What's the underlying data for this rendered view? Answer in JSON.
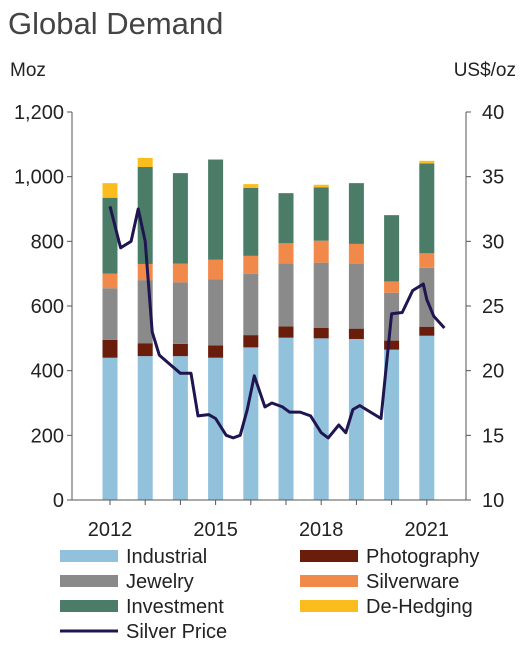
{
  "chart_data": {
    "type": "bar",
    "title": "Global Demand",
    "ylabel_left": "Moz",
    "ylabel_right": "US$/oz",
    "ylim_left": [
      0,
      1200
    ],
    "yticks_left": [
      "0",
      "200",
      "400",
      "600",
      "800",
      "1,000",
      "1,200"
    ],
    "ylim_right": [
      10,
      40
    ],
    "yticks_right": [
      "10",
      "15",
      "20",
      "25",
      "30",
      "35",
      "40"
    ],
    "x_tick_labels": [
      "2012",
      "2015",
      "2018",
      "2021"
    ],
    "categories": [
      "2012",
      "2013",
      "2014",
      "2015",
      "2016",
      "2017",
      "2018",
      "2019",
      "2020",
      "2021"
    ],
    "series": [
      {
        "name": "Industrial",
        "color": "#92c1dc",
        "values": [
          440,
          445,
          445,
          440,
          472,
          502,
          500,
          498,
          465,
          508
        ]
      },
      {
        "name": "Photography",
        "color": "#6b1d0c",
        "values": [
          55,
          40,
          38,
          38,
          38,
          35,
          32,
          32,
          28,
          28
        ]
      },
      {
        "name": "Jewelry",
        "color": "#8a8a8a",
        "values": [
          160,
          195,
          190,
          205,
          190,
          195,
          202,
          200,
          148,
          182
        ]
      },
      {
        "name": "Silverware",
        "color": "#f0894a",
        "values": [
          45,
          50,
          58,
          60,
          55,
          62,
          68,
          62,
          35,
          45
        ]
      },
      {
        "name": "Investment",
        "color": "#4a7c68",
        "values": [
          235,
          300,
          280,
          310,
          210,
          155,
          165,
          188,
          205,
          278
        ]
      },
      {
        "name": "De-Hedging",
        "color": "#fbbd1d",
        "values": [
          45,
          28,
          0,
          0,
          12,
          0,
          8,
          0,
          0,
          8
        ]
      }
    ],
    "line_series": {
      "name": "Silver Price",
      "color": "#1f1550",
      "axis": "right",
      "x": [
        2012.0,
        2012.3,
        2012.6,
        2012.8,
        2013.0,
        2013.2,
        2013.4,
        2013.7,
        2014.0,
        2014.3,
        2014.5,
        2014.8,
        2015.0,
        2015.3,
        2015.5,
        2015.7,
        2015.9,
        2016.1,
        2016.4,
        2016.6,
        2016.9,
        2017.1,
        2017.4,
        2017.7,
        2018.0,
        2018.2,
        2018.5,
        2018.7,
        2018.9,
        2019.1,
        2019.4,
        2019.7,
        2020.0,
        2020.3,
        2020.6,
        2020.9,
        2021.0,
        2021.2,
        2021.5
      ],
      "values": [
        32.7,
        29.5,
        30.0,
        32.5,
        30.0,
        23.0,
        21.2,
        20.5,
        19.8,
        19.8,
        16.5,
        16.6,
        16.3,
        15.0,
        14.8,
        15.0,
        17.0,
        19.6,
        17.2,
        17.5,
        17.2,
        16.8,
        16.8,
        16.5,
        15.2,
        14.8,
        15.8,
        15.2,
        17.0,
        17.3,
        16.8,
        16.3,
        24.4,
        24.5,
        26.2,
        26.7,
        25.5,
        24.2,
        23.3
      ]
    }
  }
}
